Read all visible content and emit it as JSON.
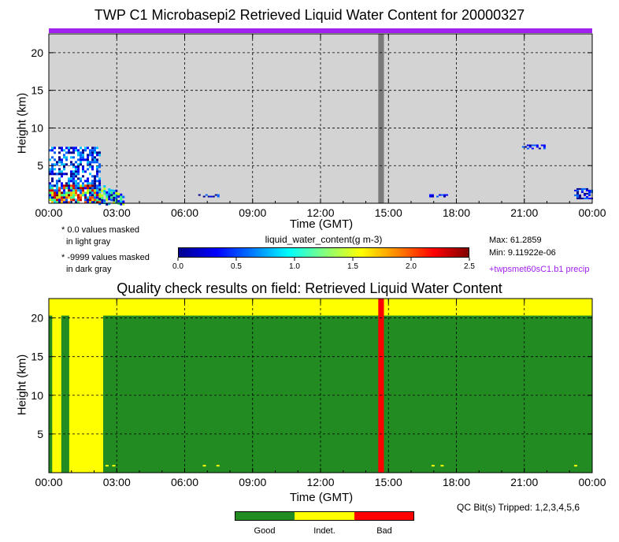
{
  "colors": {
    "plot_bg": "#d3d3d3",
    "dark_gray": "#7a7a7a",
    "purple": "#a020f0",
    "good": "#228b22",
    "indet": "#ffff00",
    "bad": "#ff0000"
  },
  "top": {
    "title": "TWP C1 Microbasepi2 Retrieved Liquid Water Content for 20000327",
    "ylabel": "Height (km)",
    "xlabel": "Time (GMT)",
    "note1_line1": "* 0.0 values masked",
    "note1_line2": "in light gray",
    "note2_line1": "* -9999 values masked",
    "note2_line2": "in dark gray",
    "colorbar_label": "liquid_water_content(g m-3)",
    "colorbar_ticks": [
      "0.0",
      "0.5",
      "1.0",
      "1.5",
      "2.0",
      "2.5"
    ],
    "max_text": "Max: 61.2859",
    "min_text": "Min: 9.11922e-06",
    "precip_text": "+twpsmet60sC1.b1 precip"
  },
  "bottom": {
    "title": "Quality check results on field: Retrieved Liquid Water Content",
    "ylabel": "Height (km)",
    "xlabel": "Time (GMT)",
    "qc_bits": "QC Bit(s) Tripped: 1,2,3,4,5,6",
    "legend": [
      "Good",
      "Indet.",
      "Bad"
    ]
  },
  "chart_data": [
    {
      "type": "heatmap",
      "title": "TWP C1 Microbasepi2 Retrieved Liquid Water Content for 20000327",
      "xlabel": "Time (GMT)",
      "ylabel": "Height (km)",
      "x_tick_labels": [
        "00:00",
        "03:00",
        "06:00",
        "09:00",
        "12:00",
        "15:00",
        "18:00",
        "21:00",
        "00:00"
      ],
      "y_tick_labels": [
        "5",
        "10",
        "15",
        "20"
      ],
      "xlim_hours": [
        0,
        24
      ],
      "ylim_km": [
        0,
        22.5
      ],
      "colorbar": {
        "label": "liquid_water_content(g m-3)",
        "range": [
          0.0,
          2.5
        ]
      },
      "max": 61.2859,
      "min": 9.11922e-06,
      "missing_value_time_range_hours": [
        14.55,
        14.8
      ],
      "liquid_water_regions": [
        {
          "time_hours": [
            0.0,
            2.2
          ],
          "height_km": [
            0.0,
            7.5
          ],
          "note": "mixed high values"
        },
        {
          "time_hours": [
            2.2,
            3.3
          ],
          "height_km": [
            0.0,
            3.2
          ]
        },
        {
          "time_hours": [
            6.6,
            7.5
          ],
          "height_km": [
            0.8,
            1.2
          ]
        },
        {
          "time_hours": [
            16.8,
            17.6
          ],
          "height_km": [
            0.9,
            1.2
          ]
        },
        {
          "time_hours": [
            20.9,
            21.9
          ],
          "height_km": [
            7.3,
            7.8
          ]
        },
        {
          "time_hours": [
            23.2,
            24.0
          ],
          "height_km": [
            0.6,
            2.0
          ]
        }
      ],
      "precip_flag_time_hours": [
        0,
        24
      ],
      "grid": true
    },
    {
      "type": "heatmap",
      "title": "Quality check results on field: Retrieved Liquid Water Content",
      "xlabel": "Time (GMT)",
      "ylabel": "Height (km)",
      "x_tick_labels": [
        "00:00",
        "03:00",
        "06:00",
        "09:00",
        "12:00",
        "15:00",
        "18:00",
        "21:00",
        "00:00"
      ],
      "y_tick_labels": [
        "5",
        "10",
        "15",
        "20"
      ],
      "xlim_hours": [
        0,
        24
      ],
      "ylim_km": [
        0,
        22.5
      ],
      "categories": [
        "Good",
        "Indet.",
        "Bad"
      ],
      "regions": [
        {
          "category": "Indet.",
          "time_hours": [
            0,
            24
          ],
          "height_km": [
            0,
            22.5
          ]
        },
        {
          "category": "Good",
          "time_hours": [
            0.0,
            0.15
          ],
          "height_km": [
            0,
            20.3
          ]
        },
        {
          "category": "Good",
          "time_hours": [
            0.55,
            0.9
          ],
          "height_km": [
            0,
            20.3
          ]
        },
        {
          "category": "Good",
          "time_hours": [
            2.4,
            24.0
          ],
          "height_km": [
            0,
            20.3
          ]
        },
        {
          "category": "Bad",
          "time_hours": [
            14.55,
            14.8
          ],
          "height_km": [
            0,
            22.5
          ]
        }
      ],
      "grid": true
    }
  ]
}
